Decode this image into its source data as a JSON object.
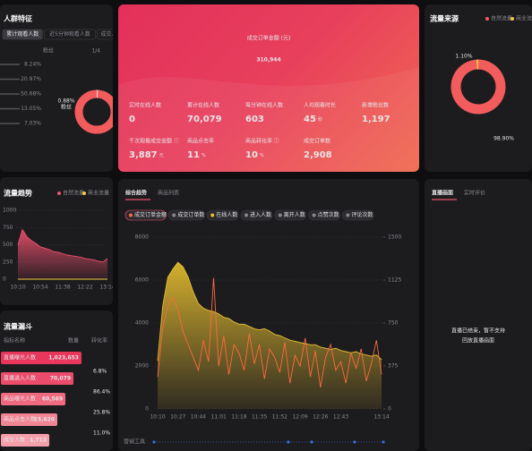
{
  "audience": {
    "title": "人群特征",
    "tabs": [
      "累计观看人数",
      "近5分钟观看人数",
      "成交人数"
    ],
    "legend_label": "粉丝",
    "pager": "1/4",
    "percentages": [
      "8.24%",
      "20.97%",
      "50.68%",
      "13.05%",
      "7.03%"
    ],
    "values": [
      0.88
    ],
    "value_labels": [
      "0.88%"
    ],
    "donut_label": "粉丝"
  },
  "summary": {
    "title": "成交订单金额 (元)",
    "value": "310,944",
    "metrics": [
      {
        "label": "实时在线人数",
        "value": "0"
      },
      {
        "label": "累计在线人数",
        "value": "70,079"
      },
      {
        "label": "每分钟在线人数",
        "value": "603"
      },
      {
        "label": "人均观看时长",
        "value": "45",
        "unit": "秒"
      },
      {
        "label": "新增粉丝数",
        "value": "1,197"
      },
      {
        "label": "千次观看成交金额 ⓘ",
        "value": "3,887",
        "unit": "元"
      },
      {
        "label": "商品点击率",
        "value": "11",
        "unit": "%"
      },
      {
        "label": "商品转化率 ⓘ",
        "value": "10",
        "unit": "%"
      },
      {
        "label": "成交订单数",
        "value": "2,908"
      }
    ]
  },
  "funnel": {
    "title": "流量漏斗",
    "headers": [
      "指标名称",
      "数量",
      "转化率"
    ],
    "rows": [
      {
        "name": "直播曝光人数",
        "value": 1023653,
        "value_label": "1,023,653"
      },
      {
        "name": "直播进入人数",
        "value": 70079,
        "value_label": "70,079"
      },
      {
        "name": "商品曝光人数",
        "value": 60569,
        "value_label": "60,569"
      },
      {
        "name": "商品点击人数",
        "value": 15620,
        "value_label": "15,620"
      },
      {
        "name": "成交人数",
        "value": 1713,
        "value_label": "1,713"
      }
    ],
    "rates": [
      "6.8%",
      "86.4%",
      "25.8%",
      "11.0%"
    ]
  },
  "live": {
    "tabs": [
      "直播画面",
      "实时评价"
    ],
    "message": [
      "直播已结束，暂不支持",
      "回放直播画面"
    ]
  },
  "chart_data": [
    {
      "type": "line",
      "title": "流量趋势",
      "categories": [
        "10:10",
        null,
        null,
        null,
        null,
        "10:54",
        null,
        null,
        null,
        null,
        "11:38",
        null,
        null,
        null,
        null,
        "12:22",
        null,
        null,
        null,
        null,
        "13:14"
      ],
      "series": [
        {
          "name": "自然流量",
          "color": "#f0506e",
          "area": true,
          "values": [
            500,
            720,
            620,
            560,
            520,
            470,
            450,
            430,
            400,
            390,
            370,
            350,
            340,
            330,
            320,
            300,
            290,
            280,
            260,
            250,
            300
          ]
        },
        {
          "name": "商业流量",
          "color": "#f5c842",
          "values": [
            0,
            0,
            0,
            0,
            0,
            0,
            0,
            0,
            0,
            0,
            0,
            0,
            0,
            0,
            0,
            0,
            0,
            0,
            0,
            0,
            0
          ]
        }
      ],
      "ylim": [
        0,
        1000
      ],
      "yticks": [
        0,
        250,
        500,
        750,
        1000
      ],
      "grid": true
    },
    {
      "type": "line",
      "tabs": [
        "综合趋势",
        "商品列表"
      ],
      "other_metrics": [
        "成交订单数",
        "进入人数",
        "离开人数",
        "点赞次数",
        "评论次数"
      ],
      "footer_label": "营销工具",
      "categories": [
        "10:10",
        null,
        null,
        null,
        "10:27",
        null,
        null,
        null,
        "10:44",
        null,
        null,
        null,
        "11:01",
        null,
        null,
        null,
        "11:18",
        null,
        null,
        null,
        "11:35",
        null,
        null,
        null,
        "11:52",
        null,
        null,
        null,
        "12:09",
        null,
        null,
        null,
        "12:26",
        null,
        null,
        null,
        "12:43",
        null,
        null,
        null,
        null,
        null,
        null,
        null,
        "13:14"
      ],
      "series": [
        {
          "name": "成交订单金额",
          "color": "#ff6a3d",
          "values": [
            1500,
            3800,
            4800,
            5200,
            4600,
            3600,
            3000,
            2400,
            1800,
            3200,
            2200,
            6100,
            2000,
            3400,
            1600,
            3000,
            2600,
            1800,
            3500,
            2100,
            3000,
            1400,
            2800,
            2400,
            1700,
            3100,
            1200,
            2500,
            2000,
            3300,
            1500,
            2700,
            1000,
            2400,
            3000,
            1800,
            2200,
            1200,
            2600,
            1900,
            2800,
            1300,
            2100,
            3200,
            1600
          ]
        },
        {
          "name": "在线人数",
          "color": "#e8c030",
          "axis": "y2",
          "area": true,
          "values": [
            420,
            900,
            1150,
            1220,
            1280,
            1240,
            1150,
            1020,
            920,
            880,
            860,
            850,
            830,
            800,
            790,
            760,
            740,
            740,
            720,
            700,
            690,
            700,
            680,
            650,
            640,
            620,
            600,
            590,
            580,
            570,
            560,
            560,
            540,
            530,
            520,
            530,
            510,
            500,
            490,
            500,
            480,
            470,
            460,
            470,
            430
          ]
        }
      ],
      "ylim": [
        0,
        8000
      ],
      "yticks": [
        0,
        2000,
        4000,
        6000,
        8000
      ],
      "y2lim": [
        0,
        1500
      ],
      "y2ticks": [
        0,
        375,
        750,
        1125,
        1500
      ],
      "grid": true
    },
    {
      "type": "pie",
      "title": "流量来源",
      "categories": [
        "自然流量",
        "商业流量"
      ],
      "values": [
        98.9,
        1.1
      ],
      "value_labels": [
        "98.90%",
        "1.10%"
      ],
      "colors": [
        "#f25c5c",
        "#f5c842"
      ]
    }
  ]
}
